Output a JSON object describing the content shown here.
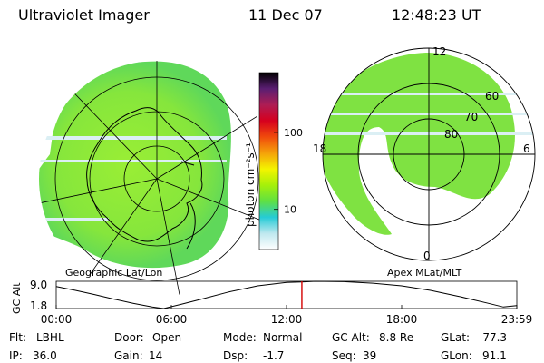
{
  "header": {
    "instrument": "Ultraviolet Imager",
    "date": "11 Dec 07",
    "time": "12:48:23 UT"
  },
  "colorbar": {
    "unit_label": "photon cm⁻²s⁻¹",
    "scale": "log",
    "min": 3,
    "max": 600,
    "ticks": [
      {
        "label": "100",
        "value": 100
      },
      {
        "label": "10",
        "value": 10
      }
    ],
    "colors": [
      "#ffffff",
      "#bfe8ef",
      "#25cbd6",
      "#5fe043",
      "#a6f00a",
      "#f4f400",
      "#f5a10a",
      "#f04a0c",
      "#d6001e",
      "#ad1d54",
      "#5a1e72",
      "#000000"
    ]
  },
  "left_map": {
    "label": "Geographic Lat/Lon",
    "colors": {
      "emission": "#8fe83a",
      "coast": "#000000",
      "grid": "#000000"
    }
  },
  "right_map": {
    "label": "Apex MLat/MLT",
    "mlt_labels": {
      "top": "12",
      "left": "18",
      "right": "6",
      "bottom": "0"
    },
    "mlat_labels": [
      "60",
      "70",
      "80"
    ]
  },
  "altitude_plot": {
    "ylabel": "GC Alt",
    "yticks": [
      "9.0",
      "1.8"
    ],
    "xticks": [
      "00:00",
      "06:00",
      "12:00",
      "18:00",
      "23:59"
    ],
    "marker_color": "#d40000"
  },
  "info": {
    "row1": [
      {
        "label": "Flt:",
        "value": "LBHL"
      },
      {
        "label": "Door:",
        "value": "Open"
      },
      {
        "label": "Mode:",
        "value": "Normal"
      },
      {
        "label": "GC Alt:",
        "value": "8.8 Re"
      },
      {
        "label": "GLat:",
        "value": "-77.3"
      }
    ],
    "row2": [
      {
        "label": "IP:",
        "value": "36.0"
      },
      {
        "label": "Gain:",
        "value": "14"
      },
      {
        "label": "Dsp:",
        "value": "-1.7"
      },
      {
        "label": "Seq:",
        "value": "39"
      },
      {
        "label": "GLon:",
        "value": "91.1"
      }
    ]
  },
  "chart_data": {
    "type": "line",
    "xlabel": "",
    "ylabel": "GC Alt",
    "xlim": [
      0,
      24
    ],
    "ylim": [
      1.8,
      9.0
    ],
    "x": [
      0,
      1,
      2,
      3,
      4,
      5,
      5.6,
      6.5,
      7.5,
      9,
      10.5,
      12,
      12.8,
      13.5,
      15,
      16.5,
      18,
      19.5,
      21,
      22.5,
      23.3,
      24
    ],
    "series": [
      {
        "values": [
          7.6,
          6.6,
          5.5,
          4.3,
          3.2,
          2.2,
          1.8,
          2.9,
          4.2,
          6.2,
          7.8,
          8.7,
          8.8,
          9.0,
          8.9,
          8.5,
          7.8,
          6.6,
          5.0,
          3.2,
          2.2,
          2.6
        ]
      }
    ],
    "marker_x": 12.8
  }
}
